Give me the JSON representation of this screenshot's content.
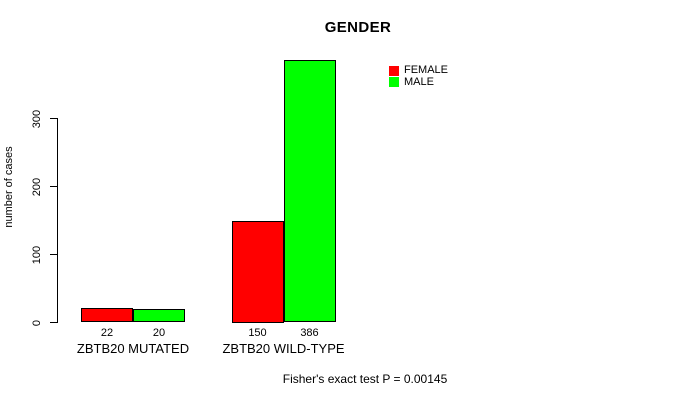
{
  "title": "GENDER",
  "footer": "Fisher's exact test P = 0.00145",
  "chart_data": {
    "type": "bar",
    "title": "GENDER",
    "xlabel": "",
    "ylabel": "number of cases",
    "categories": [
      "ZBTB20 MUTATED",
      "ZBTB20 WILD-TYPE"
    ],
    "series": [
      {
        "name": "FEMALE",
        "color": "#ff0000",
        "values": [
          22,
          150
        ]
      },
      {
        "name": "MALE",
        "color": "#00ff00",
        "values": [
          20,
          386
        ]
      }
    ],
    "bar_value_labels": [
      [
        22,
        20
      ],
      [
        150,
        386
      ]
    ],
    "yticks": [
      0,
      100,
      200,
      300
    ],
    "ylim": [
      0,
      395
    ],
    "grid": false,
    "legend_position": "top-right",
    "annotation": "Fisher's exact test P = 0.00145"
  }
}
